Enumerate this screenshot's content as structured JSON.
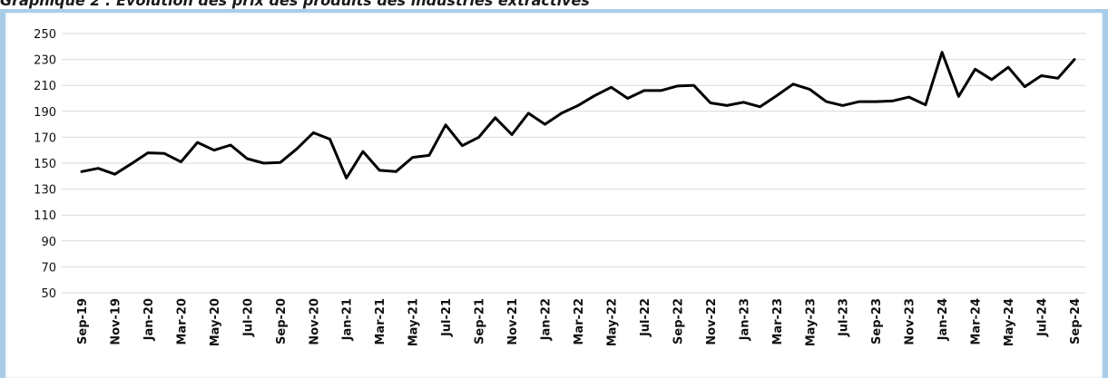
{
  "caption": "Graphique 2 : Évolution des prix des produits des industries extractives",
  "colors": {
    "line": "#000000",
    "grid": "#d9d9d9",
    "frame": "#a9cde8"
  },
  "chart_data": {
    "type": "line",
    "title": "",
    "xlabel": "",
    "ylabel": "",
    "ylim": [
      50,
      250
    ],
    "y_ticks": [
      50,
      70,
      90,
      110,
      130,
      150,
      170,
      190,
      210,
      230,
      250
    ],
    "grid": "horizontal",
    "x_tick_labels": [
      "Sep-19",
      "Nov-19",
      "Jan-20",
      "Mar-20",
      "May-20",
      "Jul-20",
      "Sep-20",
      "Nov-20",
      "Jan-21",
      "Mar-21",
      "May-21",
      "Jul-21",
      "Sep-21",
      "Nov-21",
      "Jan-22",
      "Mar-22",
      "May-22",
      "Jul-22",
      "Sep-22",
      "Nov-22",
      "Jan-23",
      "Mar-23",
      "May-23",
      "Jul-23",
      "Sep-23",
      "Nov-23",
      "Jan-24",
      "Mar-24",
      "May-24",
      "Jul-24",
      "Sep-24"
    ],
    "categories": [
      "Sep-19",
      "Oct-19",
      "Nov-19",
      "Dec-19",
      "Jan-20",
      "Feb-20",
      "Mar-20",
      "Apr-20",
      "May-20",
      "Jun-20",
      "Jul-20",
      "Aug-20",
      "Sep-20",
      "Oct-20",
      "Nov-20",
      "Dec-20",
      "Jan-21",
      "Feb-21",
      "Mar-21",
      "Apr-21",
      "May-21",
      "Jun-21",
      "Jul-21",
      "Aug-21",
      "Sep-21",
      "Oct-21",
      "Nov-21",
      "Dec-21",
      "Jan-22",
      "Feb-22",
      "Mar-22",
      "Apr-22",
      "May-22",
      "Jun-22",
      "Jul-22",
      "Aug-22",
      "Sep-22",
      "Oct-22",
      "Nov-22",
      "Dec-22",
      "Jan-23",
      "Feb-23",
      "Mar-23",
      "Apr-23",
      "May-23",
      "Jun-23",
      "Jul-23",
      "Aug-23",
      "Sep-23",
      "Oct-23",
      "Nov-23",
      "Dec-23",
      "Jan-24",
      "Feb-24",
      "Mar-24",
      "Apr-24",
      "May-24",
      "Jun-24",
      "Jul-24",
      "Aug-24",
      "Sep-24"
    ],
    "series": [
      {
        "values": [
          143.5,
          146,
          141.5,
          149.5,
          158,
          157.5,
          151,
          166,
          160,
          164,
          153.5,
          150,
          150.5,
          161,
          173.5,
          168.5,
          138.5,
          159,
          144.5,
          143.5,
          154.5,
          156,
          179.5,
          163.5,
          170,
          185,
          172,
          188.5,
          180,
          188.5,
          194.5,
          202,
          208.5,
          200,
          206,
          206,
          209.5,
          210,
          196.5,
          194.5,
          197,
          193.5,
          202,
          211,
          207,
          197.5,
          194.5,
          197.5,
          197.5,
          198,
          201,
          195,
          235.5,
          201.5,
          222.5,
          214.5,
          224,
          209,
          217.5,
          215.5,
          230
        ]
      }
    ]
  }
}
